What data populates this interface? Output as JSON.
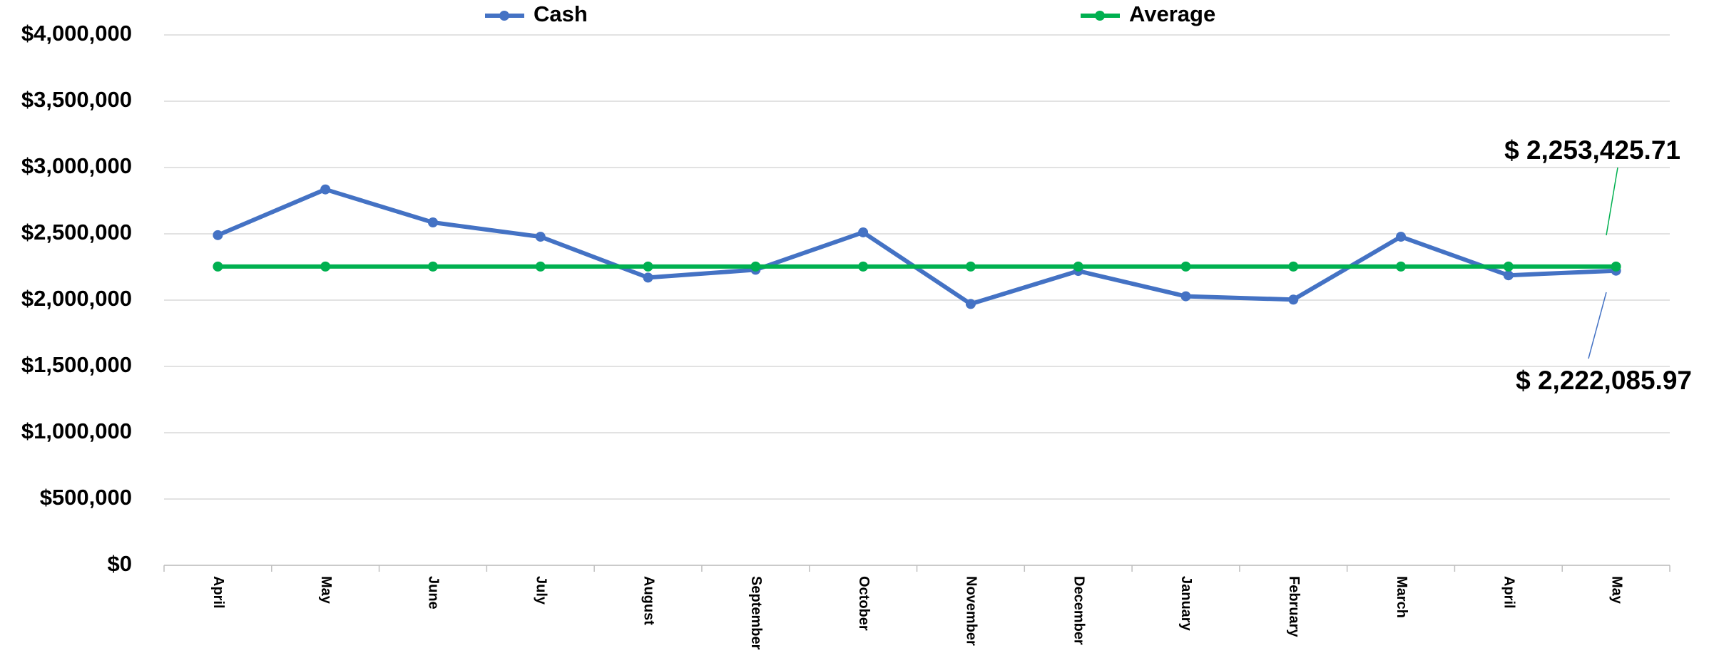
{
  "chart_data": {
    "type": "line",
    "categories": [
      "April",
      "May",
      "June",
      "July",
      "August",
      "September",
      "October",
      "November",
      "December",
      "January",
      "February",
      "March",
      "April",
      "May"
    ],
    "series": [
      {
        "name": "Cash",
        "color": "#4472c4",
        "values": [
          2490000,
          2835000,
          2586000,
          2478000,
          2170000,
          2229000,
          2511000,
          1971000,
          2220000,
          2029000,
          2004000,
          2478000,
          2187000,
          2222085.97
        ],
        "value_labels": [
          null,
          null,
          null,
          null,
          null,
          null,
          null,
          null,
          null,
          null,
          null,
          null,
          null,
          "$  2,222,085.97"
        ]
      },
      {
        "name": "Average",
        "color": "#00b050",
        "values": [
          2253425.71,
          2253425.71,
          2253425.71,
          2253425.71,
          2253425.71,
          2253425.71,
          2253425.71,
          2253425.71,
          2253425.71,
          2253425.71,
          2253425.71,
          2253425.71,
          2253425.71,
          2253425.71
        ],
        "value_labels": [
          null,
          null,
          null,
          null,
          null,
          null,
          null,
          null,
          null,
          null,
          null,
          null,
          null,
          "$  2,253,425.71"
        ]
      }
    ],
    "ylim": [
      0,
      4000000
    ],
    "yticks": [
      {
        "value": 0,
        "label": "$0"
      },
      {
        "value": 500000,
        "label": "$500,000"
      },
      {
        "value": 1000000,
        "label": "$1,000,000"
      },
      {
        "value": 1500000,
        "label": "$1,500,000"
      },
      {
        "value": 2000000,
        "label": "$2,000,000"
      },
      {
        "value": 2500000,
        "label": "$2,500,000"
      },
      {
        "value": 3000000,
        "label": "$3,000,000"
      },
      {
        "value": 3500000,
        "label": "$3,500,000"
      },
      {
        "value": 4000000,
        "label": "$4,000,000"
      }
    ],
    "grid": true,
    "legend": "top"
  }
}
